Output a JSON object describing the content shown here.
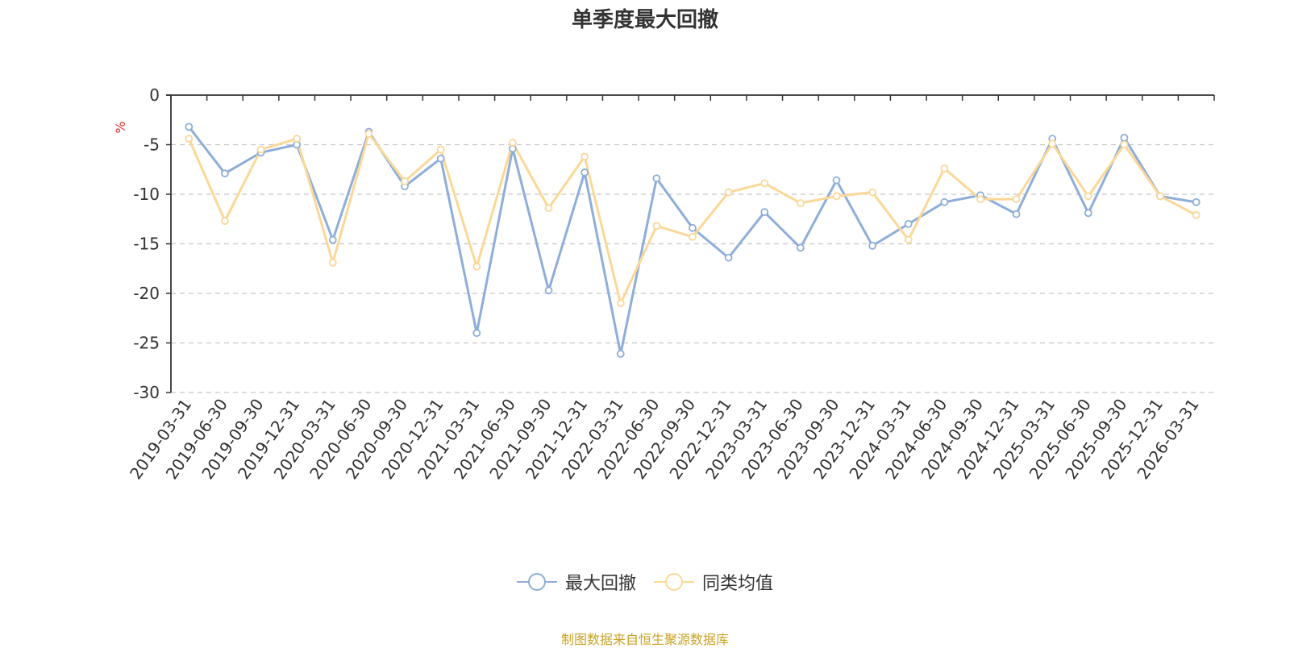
{
  "colors": {
    "series1": "#8eaed9",
    "series2": "#fbd897",
    "grid": "#c8c8c8",
    "axis": "#333333",
    "unit": "#e03030",
    "source": "#c9a227"
  },
  "chart_data": {
    "type": "line",
    "title": "单季度最大回撤",
    "ylabel": "%",
    "ylim": [
      -30,
      0
    ],
    "yticks": [
      0,
      -5,
      -10,
      -15,
      -20,
      -25,
      -30
    ],
    "grid": "horizontal-dashed",
    "legend_position": "bottom-center",
    "categories": [
      "2019-03-31",
      "2019-06-30",
      "2019-09-30",
      "2019-12-31",
      "2020-03-31",
      "2020-06-30",
      "2020-09-30",
      "2020-12-31",
      "2021-03-31",
      "2021-06-30",
      "2021-09-30",
      "2021-12-31",
      "2022-03-31",
      "2022-06-30",
      "2022-09-30",
      "2022-12-31",
      "2023-03-31",
      "2023-06-30",
      "2023-09-30",
      "2023-12-31",
      "2024-03-31",
      "2024-06-30",
      "2024-09-30",
      "2024-12-31",
      "2025-03-31",
      "2025-06-30",
      "2025-09-30",
      "2025-12-31",
      "2026-03-31"
    ],
    "series": [
      {
        "name": "最大回撤",
        "color": "#8eaed9",
        "values": [
          -3.2,
          -7.9,
          -5.8,
          -5.0,
          -14.6,
          -3.7,
          -9.2,
          -6.4,
          -24.0,
          -5.4,
          -19.7,
          -7.8,
          -26.1,
          -8.4,
          -13.4,
          -16.4,
          -11.8,
          -15.4,
          -8.6,
          -15.2,
          -13.0,
          -10.8,
          -10.1,
          -12.0,
          -4.4,
          -11.9,
          -4.3,
          -10.2,
          -10.8
        ]
      },
      {
        "name": "同类均值",
        "color": "#fbd897",
        "values": [
          -4.4,
          -12.7,
          -5.5,
          -4.4,
          -16.9,
          -3.9,
          -8.7,
          -5.5,
          -17.3,
          -4.8,
          -11.4,
          -6.2,
          -21.0,
          -13.2,
          -14.3,
          -9.8,
          -8.9,
          -10.9,
          -10.2,
          -9.8,
          -14.6,
          -7.4,
          -10.5,
          -10.5,
          -4.9,
          -10.2,
          -5.0,
          -10.2,
          -12.1
        ]
      }
    ]
  },
  "source_note": "制图数据来自恒生聚源数据库"
}
